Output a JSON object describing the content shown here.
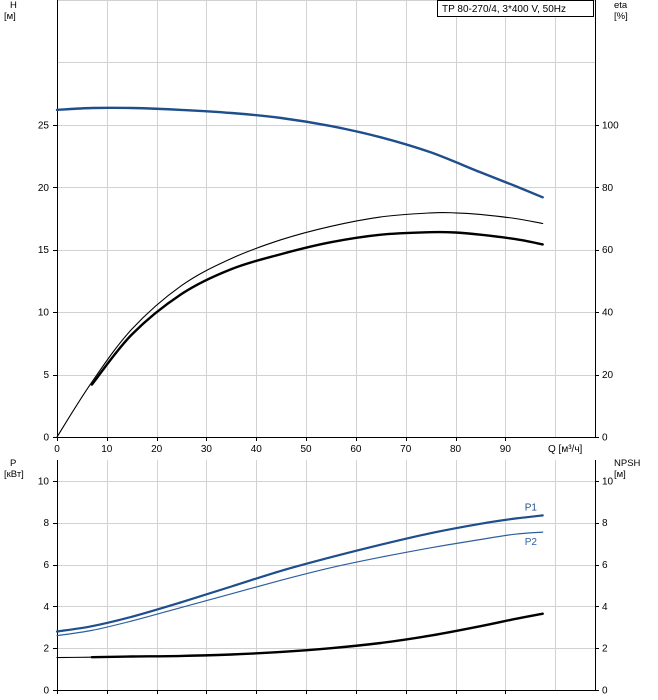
{
  "chart_data": [
    {
      "type": "line",
      "title": "TP 80-270/4, 3*400 V, 50Hz",
      "xlabel": "Q [м³/ч]",
      "ylabel_left": "H",
      "ylabel_left_unit": "[м]",
      "ylabel_right": "eta",
      "ylabel_right_unit": "[%]",
      "xlim": [
        0,
        108
      ],
      "ylim_left": [
        0,
        35
      ],
      "ylim_right": [
        0,
        140
      ],
      "xticks": [
        0,
        10,
        20,
        30,
        40,
        50,
        60,
        70,
        80,
        90
      ],
      "yticks_left": [
        0,
        5,
        10,
        15,
        20,
        25
      ],
      "yticks_right": [
        0,
        20,
        40,
        60,
        80,
        100
      ],
      "grid": true,
      "series": [
        {
          "axis": "left",
          "color": "#1f4e8c",
          "width": 2.4,
          "x": [
            0,
            7,
            15,
            25,
            35,
            45,
            55,
            65,
            75,
            85,
            92,
            97.5
          ],
          "y": [
            26.2,
            26.35,
            26.35,
            26.2,
            25.95,
            25.55,
            24.9,
            24.0,
            22.8,
            21.2,
            20.1,
            19.2
          ]
        },
        {
          "axis": "right",
          "color": "#000000",
          "width": 1.1,
          "x": [
            0,
            7,
            15,
            25,
            35,
            45,
            55,
            65,
            75,
            80,
            85,
            92,
            97.5
          ],
          "y": [
            0,
            17.6,
            34.5,
            48.5,
            57.2,
            63.2,
            67.5,
            70.5,
            71.8,
            71.8,
            71.3,
            70.0,
            68.4
          ]
        },
        {
          "axis": "right",
          "color": "#000000",
          "width": 2.4,
          "x": [
            7,
            15,
            25,
            35,
            45,
            55,
            65,
            75,
            80,
            85,
            92,
            97.5
          ],
          "y": [
            16.8,
            32.8,
            45.8,
            53.8,
            58.6,
            62.4,
            64.8,
            65.6,
            65.5,
            64.8,
            63.4,
            61.7
          ]
        }
      ]
    },
    {
      "type": "line",
      "ylabel_left": "P",
      "ylabel_left_unit": "[кВт]",
      "ylabel_right": "NPSH",
      "ylabel_right_unit": "[м]",
      "xlim": [
        0,
        108
      ],
      "ylim_left": [
        0,
        11
      ],
      "ylim_right": [
        0,
        11
      ],
      "xticks": [
        0,
        10,
        20,
        30,
        40,
        50,
        60,
        70,
        80,
        90
      ],
      "yticks_left": [
        0,
        2,
        4,
        6,
        8,
        10
      ],
      "yticks_right": [
        0,
        2,
        4,
        6,
        8,
        10
      ],
      "grid": true,
      "series": [
        {
          "name": "P1",
          "axis": "left",
          "color": "#1f4e8c",
          "width": 2.2,
          "x": [
            0,
            7,
            15,
            25,
            35,
            45,
            55,
            65,
            75,
            85,
            92,
            97.5
          ],
          "y": [
            2.8,
            3.05,
            3.5,
            4.2,
            4.95,
            5.7,
            6.35,
            6.95,
            7.5,
            7.95,
            8.2,
            8.35
          ]
        },
        {
          "name": "P2",
          "axis": "left",
          "color": "#2e5fa0",
          "width": 1.2,
          "x": [
            0,
            7,
            15,
            25,
            35,
            45,
            55,
            65,
            75,
            85,
            92,
            97.5
          ],
          "y": [
            2.6,
            2.85,
            3.3,
            3.95,
            4.6,
            5.25,
            5.85,
            6.35,
            6.8,
            7.2,
            7.45,
            7.55
          ]
        },
        {
          "axis": "right",
          "color": "#000000",
          "width": 1.1,
          "x": [
            0,
            7
          ],
          "y": [
            1.55,
            1.57
          ]
        },
        {
          "axis": "right",
          "color": "#000000",
          "width": 2.4,
          "x": [
            7,
            15,
            25,
            35,
            45,
            55,
            65,
            75,
            85,
            92,
            97.5
          ],
          "y": [
            1.57,
            1.6,
            1.63,
            1.7,
            1.82,
            2.0,
            2.25,
            2.6,
            3.05,
            3.4,
            3.65
          ]
        }
      ]
    }
  ]
}
